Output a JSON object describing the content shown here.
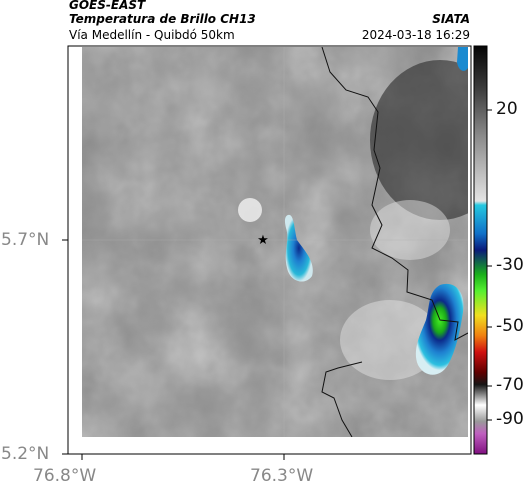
{
  "header": {
    "satellite": "GOES-EAST",
    "product": "Temperatura de Brillo CH13",
    "route": "Vía Medellín - Quibdó 50km",
    "agency": "SIATA",
    "timestamp": "2024-03-18 16:29"
  },
  "axes": {
    "x_ticks": [
      {
        "value": -76.8,
        "label": "76.8°W"
      },
      {
        "value": -76.3,
        "label": "76.3°W"
      }
    ],
    "y_ticks": [
      {
        "value": 5.7,
        "label": "5.7°N"
      },
      {
        "value": 5.2,
        "label": "5.2°N"
      }
    ]
  },
  "colorbar": {
    "ticks": [
      {
        "value": 20,
        "label": "20"
      },
      {
        "value": -30,
        "label": "-30"
      },
      {
        "value": -50,
        "label": "-50"
      },
      {
        "value": -70,
        "label": "-70"
      },
      {
        "value": -90,
        "label": "-90"
      }
    ]
  },
  "colors": {
    "cold_top_blue": "#1f6fbf",
    "cold_top_green": "#22cc22",
    "background_gray": "#8a8a8a"
  },
  "marker_icon": "star-icon"
}
